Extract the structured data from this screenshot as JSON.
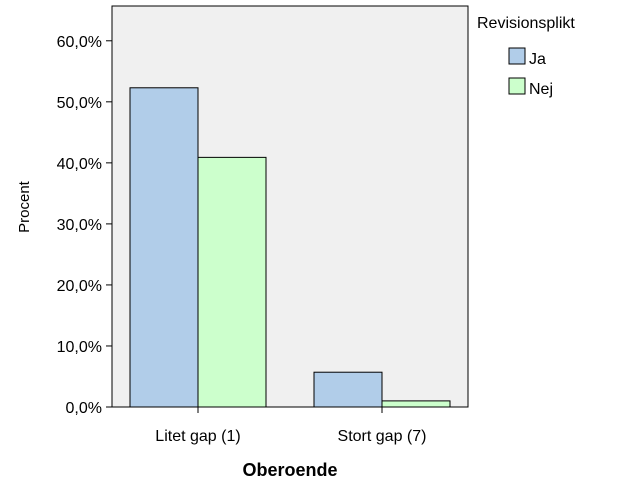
{
  "chart_data": {
    "type": "bar",
    "categories": [
      "Litet gap (1)",
      "Stort gap (7)"
    ],
    "series": [
      {
        "name": "Ja",
        "values": [
          52.3,
          5.7
        ],
        "color": "#b1cde9"
      },
      {
        "name": "Nej",
        "values": [
          40.9,
          1.0
        ],
        "color": "#ccffcc"
      }
    ],
    "xlabel": "Oberoende",
    "ylabel": "Procent",
    "ylim": [
      0,
      65.7
    ],
    "yticks": [
      0,
      10,
      20,
      30,
      40,
      50,
      60
    ],
    "ytick_labels": [
      "0,0%",
      "10,0%",
      "20,0%",
      "30,0%",
      "40,0%",
      "50,0%",
      "60,0%"
    ],
    "legend": {
      "title": "Revisionsplikt",
      "placement": "right"
    },
    "grid": false,
    "plot_background": "#f0f0f0"
  }
}
